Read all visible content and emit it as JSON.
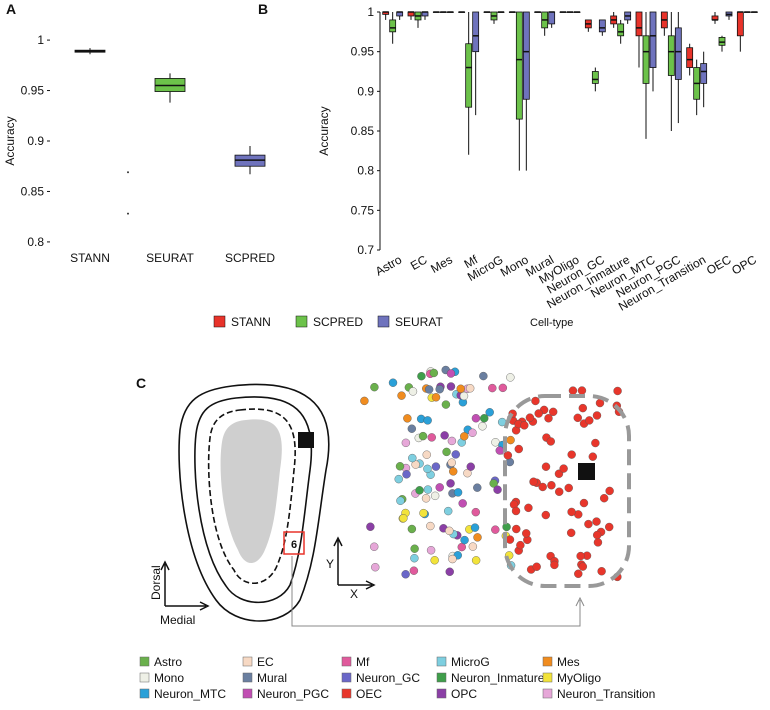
{
  "panel_letters": {
    "a": "A",
    "b": "B",
    "c": "C"
  },
  "chart_data": [
    {
      "type": "box",
      "ylabel": "Accuracy",
      "categories": [
        "STANN",
        "SEURAT",
        "SCPRED"
      ],
      "colors": [
        "#111111",
        "#6cc24a",
        "#6f73bd"
      ],
      "min": [
        0.986,
        0.938,
        0.867
      ],
      "q1": [
        0.988,
        0.949,
        0.875
      ],
      "median": [
        0.989,
        0.955,
        0.881
      ],
      "q3": [
        0.99,
        0.962,
        0.886
      ],
      "max": [
        0.992,
        0.967,
        0.895
      ],
      "outliers": [
        [],
        [
          0.869,
          0.828
        ],
        []
      ],
      "ylim": [
        0.79,
        1.01
      ],
      "yticks": [
        0.8,
        0.85,
        0.9,
        0.95,
        1
      ]
    },
    {
      "type": "grouped-box",
      "ylabel": "Accuracy",
      "xlabel": "Cell-type",
      "categories": [
        "Astro",
        "EC",
        "Mes",
        "Mf",
        "MicroG",
        "Mono",
        "Mural",
        "MyOligo",
        "Neuron_GC",
        "Neuron_Inmature",
        "Neuron_MTC",
        "Neuron_PGC",
        "Neuron_Transition",
        "OEC",
        "OPC"
      ],
      "series": [
        {
          "name": "STANN",
          "color": "#e8332a",
          "min": [
            0.99,
            0.99,
            1,
            1,
            1,
            1,
            1,
            1,
            0.975,
            0.98,
            0.93,
            0.97,
            0.92,
            0.985,
            0.95
          ],
          "q1": [
            0.997,
            0.995,
            1,
            1,
            1,
            1,
            1,
            1,
            0.98,
            0.985,
            0.97,
            0.98,
            0.93,
            0.99,
            0.97
          ],
          "median": [
            1,
            1,
            1,
            1,
            1,
            1,
            1,
            1,
            0.985,
            0.99,
            0.98,
            0.99,
            0.94,
            0.99,
            1
          ],
          "q3": [
            1,
            1,
            1,
            1,
            1,
            1,
            1,
            1,
            0.99,
            0.995,
            1,
            1,
            0.955,
            0.995,
            1
          ],
          "max": [
            1,
            1,
            1,
            1,
            1,
            1,
            1,
            1,
            0.99,
            1,
            1,
            1,
            0.96,
            1,
            1
          ]
        },
        {
          "name": "SCPRED",
          "color": "#6cc24a",
          "min": [
            0.96,
            0.98,
            1,
            0.82,
            0.985,
            0.8,
            0.97,
            1,
            0.9,
            0.96,
            0.84,
            0.85,
            0.87,
            0.95,
            1
          ],
          "q1": [
            0.975,
            0.99,
            1,
            0.88,
            0.99,
            0.865,
            0.98,
            1,
            0.91,
            0.97,
            0.91,
            0.92,
            0.89,
            0.958,
            1
          ],
          "median": [
            0.98,
            0.995,
            1,
            0.93,
            0.995,
            0.94,
            0.99,
            1,
            0.915,
            0.975,
            0.95,
            0.95,
            0.91,
            0.962,
            1
          ],
          "q3": [
            0.99,
            1,
            1,
            0.96,
            1,
            1,
            1,
            1,
            0.925,
            0.985,
            0.97,
            0.97,
            0.93,
            0.968,
            1
          ],
          "max": [
            1,
            1,
            1,
            1,
            1,
            1,
            1,
            1,
            0.93,
            0.99,
            1,
            1,
            0.94,
            0.97,
            1
          ]
        },
        {
          "name": "SEURAT",
          "color": "#6f73bd",
          "min": [
            0.99,
            0.99,
            1,
            0.87,
            1,
            0.8,
            0.98,
            1,
            0.97,
            0.985,
            0.9,
            0.86,
            0.88,
            0.99,
            1
          ],
          "q1": [
            0.995,
            0.995,
            1,
            0.95,
            1,
            0.89,
            0.985,
            1,
            0.975,
            0.99,
            0.93,
            0.915,
            0.91,
            0.995,
            1
          ],
          "median": [
            1,
            1,
            1,
            0.97,
            1,
            0.95,
            1,
            1,
            0.98,
            0.995,
            0.97,
            0.95,
            0.925,
            0.997,
            1
          ],
          "q3": [
            1,
            1,
            1,
            1,
            1,
            1,
            1,
            1,
            0.99,
            1,
            1,
            0.98,
            0.935,
            1,
            1
          ],
          "max": [
            1,
            1,
            1,
            1,
            1,
            1,
            1,
            1,
            0.99,
            1,
            1,
            1,
            0.95,
            1,
            1
          ]
        }
      ],
      "ylim": [
        0.7,
        1
      ],
      "yticks": [
        0.7,
        0.75,
        0.8,
        0.85,
        0.9,
        0.95,
        1
      ]
    }
  ],
  "diagram": {
    "dorsal": "Dorsal",
    "medial": "Medial",
    "x": "X",
    "y": "Y",
    "box": "6",
    "legend": [
      {
        "name": "Astro",
        "color": "#6ab04c"
      },
      {
        "name": "EC",
        "color": "#f7d9c4"
      },
      {
        "name": "Mf",
        "color": "#e05a9c"
      },
      {
        "name": "MicroG",
        "color": "#7ecfe0"
      },
      {
        "name": "Mes",
        "color": "#f08c1f"
      },
      {
        "name": "Mono",
        "color": "#eef0e6"
      },
      {
        "name": "Mural",
        "color": "#6a7fa0"
      },
      {
        "name": "Neuron_GC",
        "color": "#6a67c8"
      },
      {
        "name": "Neuron_Inmature",
        "color": "#3f9e4a"
      },
      {
        "name": "MyOligo",
        "color": "#f2e33a"
      },
      {
        "name": "Neuron_MTC",
        "color": "#2aa0d8"
      },
      {
        "name": "Neuron_PGC",
        "color": "#c14fb3"
      },
      {
        "name": "OEC",
        "color": "#e8362b"
      },
      {
        "name": "OPC",
        "color": "#8b3fa6"
      },
      {
        "name": "Neuron_Transition",
        "color": "#e6a7d8"
      }
    ]
  }
}
